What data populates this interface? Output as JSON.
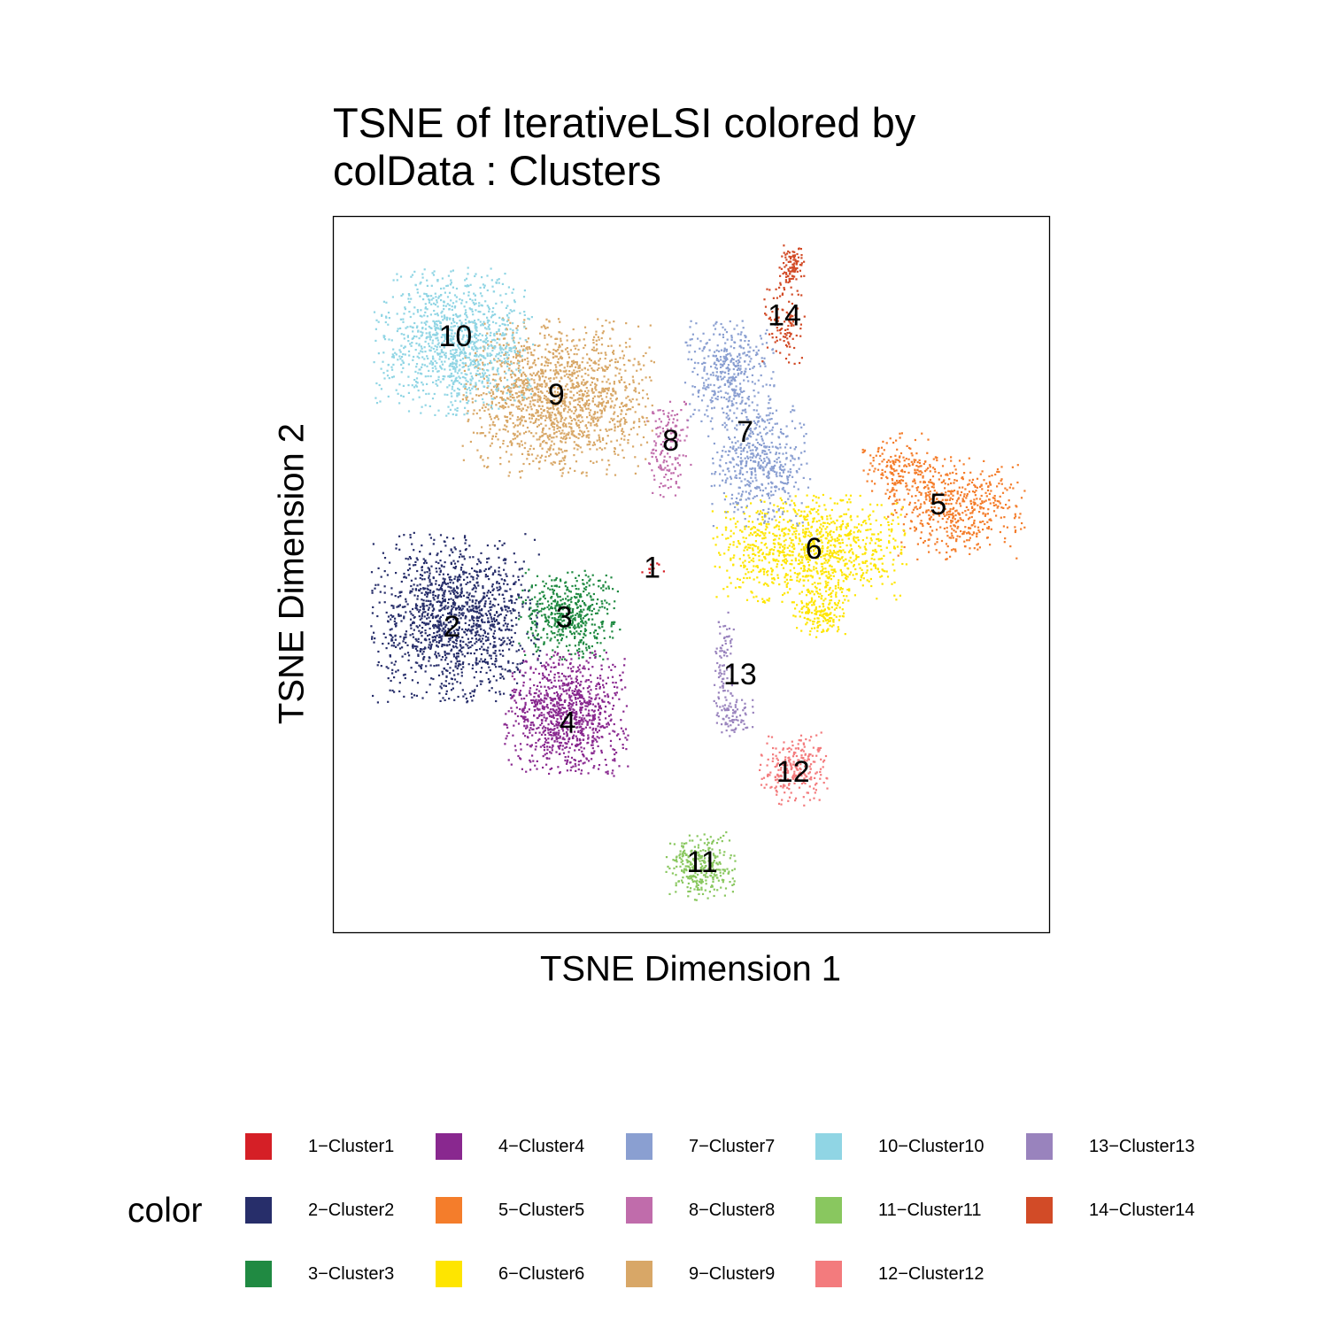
{
  "title_lines": [
    "TSNE of IterativeLSI  colored by",
    "colData :  Clusters"
  ],
  "chart_data": {
    "type": "scatter",
    "title": "TSNE of IterativeLSI  colored by colData :  Clusters",
    "xlabel": "TSNE Dimension 1",
    "ylabel": "TSNE Dimension 2",
    "axis_ticks": "none",
    "grid": false,
    "legend_title": "color",
    "legend_position": "bottom",
    "clusters": [
      {
        "id": 1,
        "label": "1",
        "legend": "1−Cluster1",
        "color": "#D51F26",
        "n": 12,
        "blobs": [
          [
            0.447,
            0.51,
            0.01,
            0.01,
            1.0
          ]
        ]
      },
      {
        "id": 2,
        "label": "2",
        "legend": "2−Cluster2",
        "color": "#272E6A",
        "n": 1400,
        "blobs": [
          [
            0.172,
            0.439,
            0.075,
            0.075,
            1.0
          ]
        ]
      },
      {
        "id": 3,
        "label": "3",
        "legend": "3−Cluster3",
        "color": "#208A42",
        "n": 500,
        "blobs": [
          [
            0.33,
            0.445,
            0.045,
            0.04,
            1.0
          ]
        ]
      },
      {
        "id": 4,
        "label": "4",
        "legend": "4−Cluster4",
        "color": "#89288F",
        "n": 1000,
        "blobs": [
          [
            0.325,
            0.305,
            0.055,
            0.055,
            1.0
          ]
        ]
      },
      {
        "id": 5,
        "label": "5",
        "legend": "5−Cluster5",
        "color": "#F47D2B",
        "n": 700,
        "blobs": [
          [
            0.87,
            0.593,
            0.06,
            0.045,
            0.75
          ],
          [
            0.79,
            0.65,
            0.035,
            0.03,
            0.25
          ]
        ]
      },
      {
        "id": 6,
        "label": "6",
        "legend": "6−Cluster6",
        "color": "#FEE500",
        "n": 1200,
        "blobs": [
          [
            0.665,
            0.535,
            0.085,
            0.048,
            0.85
          ],
          [
            0.68,
            0.45,
            0.025,
            0.025,
            0.15
          ]
        ]
      },
      {
        "id": 7,
        "label": "7",
        "legend": "7−Cluster7",
        "color": "#8A9FD1",
        "n": 900,
        "blobs": [
          [
            0.555,
            0.78,
            0.04,
            0.05,
            0.45
          ],
          [
            0.595,
            0.655,
            0.045,
            0.055,
            0.55
          ]
        ]
      },
      {
        "id": 8,
        "label": "8",
        "legend": "8−Cluster8",
        "color": "#C06CAB",
        "n": 150,
        "blobs": [
          [
            0.468,
            0.68,
            0.02,
            0.045,
            1.0
          ]
        ]
      },
      {
        "id": 9,
        "label": "9",
        "legend": "9−Cluster9",
        "color": "#D8A767",
        "n": 1500,
        "blobs": [
          [
            0.315,
            0.747,
            0.085,
            0.07,
            1.0
          ]
        ]
      },
      {
        "id": 10,
        "label": "10",
        "legend": "10−Cluster10",
        "color": "#90D5E4",
        "n": 1100,
        "blobs": [
          [
            0.167,
            0.825,
            0.07,
            0.065,
            1.0
          ]
        ]
      },
      {
        "id": 11,
        "label": "11",
        "legend": "11−Cluster11",
        "color": "#89C75F",
        "n": 300,
        "blobs": [
          [
            0.515,
            0.092,
            0.032,
            0.03,
            1.0
          ]
        ]
      },
      {
        "id": 12,
        "label": "12",
        "legend": "12−Cluster12",
        "color": "#F37B7D",
        "n": 250,
        "blobs": [
          [
            0.642,
            0.228,
            0.03,
            0.032,
            1.0
          ]
        ]
      },
      {
        "id": 13,
        "label": "13",
        "legend": "13−Cluster13",
        "color": "#9983BD",
        "n": 160,
        "blobs": [
          [
            0.545,
            0.36,
            0.01,
            0.06,
            0.6
          ],
          [
            0.56,
            0.3,
            0.018,
            0.018,
            0.4
          ]
        ]
      },
      {
        "id": 14,
        "label": "14",
        "legend": "14−Cluster14",
        "color": "#D24B27",
        "n": 200,
        "blobs": [
          [
            0.64,
            0.93,
            0.012,
            0.02,
            0.5
          ],
          [
            0.63,
            0.85,
            0.02,
            0.035,
            0.5
          ]
        ]
      }
    ],
    "label_positions": [
      {
        "label": "1",
        "x": 0.445,
        "y": 0.509
      },
      {
        "label": "2",
        "x": 0.165,
        "y": 0.427
      },
      {
        "label": "3",
        "x": 0.322,
        "y": 0.44
      },
      {
        "label": "4",
        "x": 0.327,
        "y": 0.293
      },
      {
        "label": "5",
        "x": 0.845,
        "y": 0.598
      },
      {
        "label": "6",
        "x": 0.671,
        "y": 0.536
      },
      {
        "label": "7",
        "x": 0.575,
        "y": 0.699
      },
      {
        "label": "8",
        "x": 0.471,
        "y": 0.687
      },
      {
        "label": "9",
        "x": 0.311,
        "y": 0.751
      },
      {
        "label": "10",
        "x": 0.17,
        "y": 0.833
      },
      {
        "label": "11",
        "x": 0.515,
        "y": 0.098
      },
      {
        "label": "12",
        "x": 0.642,
        "y": 0.224
      },
      {
        "label": "13",
        "x": 0.568,
        "y": 0.36
      },
      {
        "label": "14",
        "x": 0.63,
        "y": 0.862
      }
    ]
  }
}
